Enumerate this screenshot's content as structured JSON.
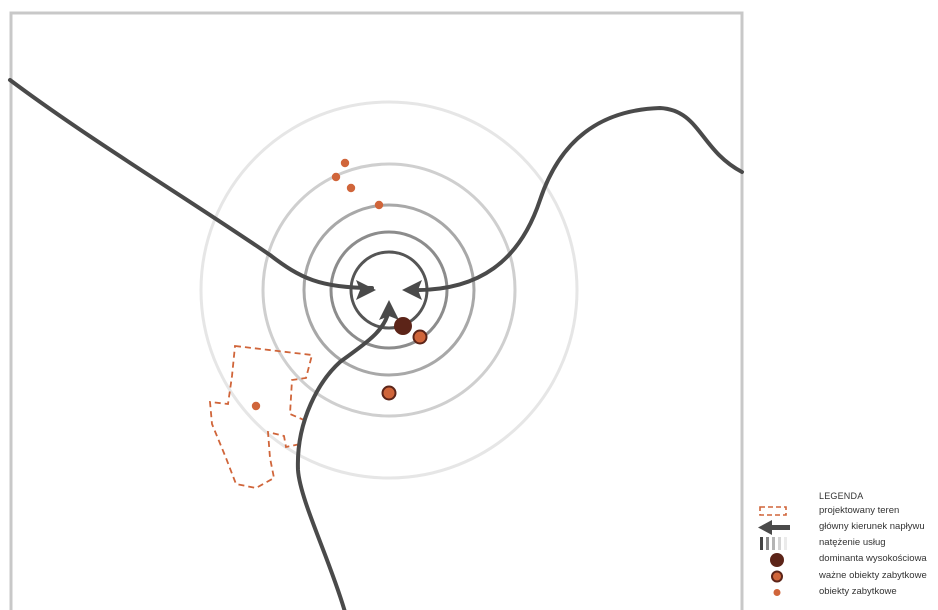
{
  "colors": {
    "frame": "#c8c8c8",
    "road": "#4a4a4a",
    "heritage": "#d0653a",
    "dominant": "#5c2418",
    "ring_outer": "#e6e6e6",
    "ring_mid": "#cfcfcf",
    "ring_inner": "#a8a8a8",
    "ring_core": "#555555"
  },
  "legend": {
    "title": "LEGENDA",
    "items": [
      {
        "key": "projected-area",
        "label": "projektowany teren",
        "icon": "dashed-rectangle-icon"
      },
      {
        "key": "main-inflow-direction",
        "label": "główny kierunek napływu",
        "icon": "arrow-left-icon"
      },
      {
        "key": "service-intensity",
        "label": "natężenie usług",
        "icon": "gradient-bars-icon"
      },
      {
        "key": "height-dominant",
        "label": "dominanta wysokościowa",
        "icon": "dark-circle-icon"
      },
      {
        "key": "important-heritage",
        "label": "ważne obiekty zabytkowe",
        "icon": "outlined-orange-circle-icon"
      },
      {
        "key": "heritage",
        "label": "obiekty zabytkowe",
        "icon": "small-orange-dot-icon"
      }
    ]
  }
}
